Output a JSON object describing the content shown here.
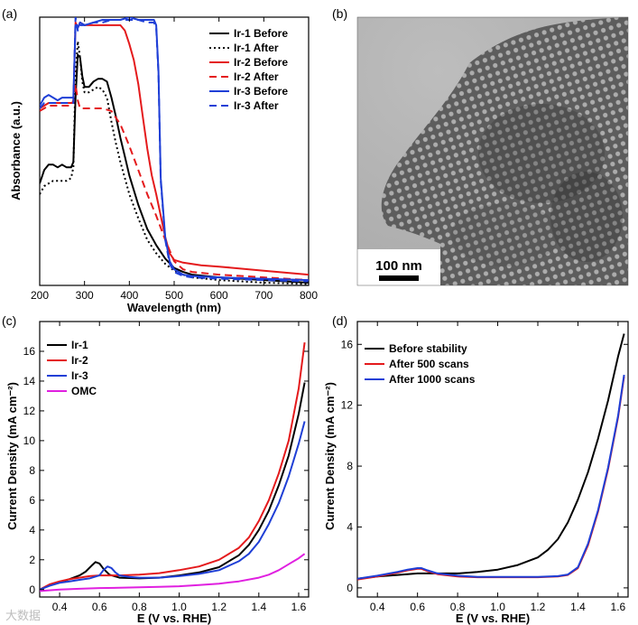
{
  "panel_labels": {
    "a": "(a)",
    "b": "(b)",
    "c": "(c)",
    "d": "(d)"
  },
  "watermark": "大数据",
  "chart_data": [
    {
      "id": "a",
      "type": "line",
      "title": "",
      "xlabel": "Wavelength (nm)",
      "ylabel": "Absorbance (a.u.)",
      "xlim": [
        200,
        800
      ],
      "ylim": [
        0,
        1
      ],
      "xticks": [
        200,
        300,
        400,
        500,
        600,
        700,
        800
      ],
      "xtick_labels": [
        "200",
        "300",
        "400",
        "500",
        "600",
        "700",
        "800"
      ],
      "yticks": [],
      "legend_position": "top-right",
      "series": [
        {
          "name": "Ir-1 Before",
          "color": "#000000",
          "dash": "solid",
          "x": [
            200,
            210,
            220,
            230,
            240,
            250,
            260,
            270,
            275,
            280,
            285,
            290,
            295,
            300,
            310,
            320,
            330,
            340,
            350,
            360,
            370,
            380,
            390,
            400,
            420,
            440,
            460,
            480,
            500,
            520,
            540,
            600,
            700,
            800
          ],
          "y": [
            0.38,
            0.43,
            0.45,
            0.45,
            0.44,
            0.45,
            0.44,
            0.44,
            0.46,
            0.7,
            0.86,
            0.85,
            0.78,
            0.74,
            0.74,
            0.76,
            0.77,
            0.77,
            0.76,
            0.7,
            0.63,
            0.55,
            0.48,
            0.41,
            0.3,
            0.21,
            0.15,
            0.1,
            0.065,
            0.05,
            0.04,
            0.03,
            0.02,
            0.01
          ]
        },
        {
          "name": "Ir-1 After",
          "color": "#000000",
          "dash": "dot",
          "x": [
            200,
            210,
            220,
            230,
            240,
            250,
            260,
            270,
            275,
            280,
            285,
            290,
            295,
            300,
            310,
            320,
            330,
            340,
            350,
            360,
            370,
            380,
            390,
            400,
            420,
            440,
            460,
            480,
            500,
            520,
            540,
            600,
            700,
            800
          ],
          "y": [
            0.34,
            0.37,
            0.38,
            0.39,
            0.39,
            0.39,
            0.39,
            0.4,
            0.44,
            0.78,
            0.91,
            0.85,
            0.76,
            0.72,
            0.72,
            0.73,
            0.74,
            0.73,
            0.7,
            0.61,
            0.53,
            0.46,
            0.4,
            0.34,
            0.25,
            0.17,
            0.12,
            0.08,
            0.055,
            0.04,
            0.03,
            0.02,
            0.01,
            0.005
          ]
        },
        {
          "name": "Ir-2 Before",
          "color": "#e41a1c",
          "dash": "solid",
          "x": [
            200,
            210,
            220,
            230,
            240,
            250,
            260,
            270,
            275,
            280,
            285,
            290,
            300,
            320,
            340,
            360,
            380,
            390,
            400,
            410,
            420,
            430,
            440,
            450,
            460,
            470,
            480,
            490,
            500,
            520,
            560,
            600,
            700,
            800
          ],
          "y": [
            0.66,
            0.67,
            0.68,
            0.68,
            0.68,
            0.68,
            0.68,
            0.68,
            0.68,
            0.98,
            0.96,
            0.98,
            0.97,
            0.97,
            0.97,
            0.97,
            0.97,
            0.95,
            0.9,
            0.84,
            0.75,
            0.63,
            0.51,
            0.41,
            0.34,
            0.26,
            0.18,
            0.12,
            0.095,
            0.085,
            0.075,
            0.07,
            0.055,
            0.04
          ]
        },
        {
          "name": "Ir-2 After",
          "color": "#e41a1c",
          "dash": "dash",
          "x": [
            200,
            210,
            220,
            230,
            240,
            250,
            260,
            270,
            275,
            280,
            285,
            290,
            300,
            320,
            340,
            360,
            380,
            390,
            400,
            420,
            440,
            460,
            480,
            500,
            520,
            540,
            600,
            700,
            800
          ],
          "y": [
            0.65,
            0.66,
            0.67,
            0.67,
            0.67,
            0.67,
            0.67,
            0.67,
            0.69,
            0.75,
            0.69,
            0.66,
            0.66,
            0.66,
            0.66,
            0.65,
            0.6,
            0.56,
            0.52,
            0.43,
            0.34,
            0.26,
            0.17,
            0.09,
            0.06,
            0.05,
            0.04,
            0.03,
            0.02
          ]
        },
        {
          "name": "Ir-3 Before",
          "color": "#1f3fd6",
          "dash": "solid",
          "x": [
            200,
            210,
            220,
            230,
            240,
            250,
            260,
            270,
            275,
            280,
            285,
            290,
            300,
            320,
            340,
            360,
            380,
            400,
            420,
            440,
            455,
            460,
            465,
            470,
            480,
            490,
            500,
            520,
            540,
            600,
            700,
            800
          ],
          "y": [
            0.67,
            0.7,
            0.71,
            0.7,
            0.69,
            0.7,
            0.7,
            0.7,
            0.7,
            0.97,
            0.96,
            0.98,
            0.97,
            0.98,
            0.99,
            0.99,
            0.99,
            1.0,
            0.99,
            0.99,
            0.99,
            0.97,
            0.8,
            0.4,
            0.18,
            0.09,
            0.06,
            0.04,
            0.035,
            0.03,
            0.025,
            0.02
          ]
        },
        {
          "name": "Ir-3 After",
          "color": "#1f3fd6",
          "dash": "dash",
          "x": [
            200,
            210,
            220,
            230,
            240,
            250,
            260,
            270,
            275,
            280,
            285,
            290,
            300,
            320,
            340,
            360,
            380,
            400,
            420,
            440,
            455,
            460,
            465,
            470,
            480,
            490,
            500,
            520,
            540,
            600,
            700,
            800
          ],
          "y": [
            0.66,
            0.68,
            0.68,
            0.68,
            0.68,
            0.68,
            0.68,
            0.68,
            0.68,
            1.0,
            0.95,
            0.97,
            0.97,
            0.98,
            0.98,
            0.99,
            0.99,
            0.99,
            0.99,
            0.98,
            0.98,
            0.96,
            0.79,
            0.39,
            0.17,
            0.08,
            0.05,
            0.035,
            0.03,
            0.025,
            0.02,
            0.015
          ]
        }
      ]
    },
    {
      "id": "c",
      "type": "line",
      "title": "",
      "xlabel": "E (V vs. RHE)",
      "ylabel": "Current Density (mA cm⁻²)",
      "xlim": [
        0.3,
        1.65
      ],
      "ylim": [
        -0.5,
        18
      ],
      "xticks": [
        0.4,
        0.6,
        0.8,
        1.0,
        1.2,
        1.4,
        1.6
      ],
      "xtick_labels": [
        "0.4",
        "0.6",
        "0.8",
        "1.0",
        "1.2",
        "1.4",
        "1.6"
      ],
      "yticks": [
        0,
        2,
        4,
        6,
        8,
        10,
        12,
        14,
        16
      ],
      "ytick_labels": [
        "0",
        "2",
        "4",
        "6",
        "8",
        "10",
        "12",
        "14",
        "16"
      ],
      "legend_position": "top-left",
      "series": [
        {
          "name": "Ir-1",
          "color": "#000000",
          "x": [
            0.3,
            0.35,
            0.4,
            0.45,
            0.5,
            0.53,
            0.56,
            0.58,
            0.6,
            0.62,
            0.65,
            0.7,
            0.8,
            0.9,
            1.0,
            1.1,
            1.2,
            1.3,
            1.35,
            1.4,
            1.45,
            1.5,
            1.55,
            1.6,
            1.63
          ],
          "y": [
            0.0,
            0.3,
            0.5,
            0.7,
            0.95,
            1.2,
            1.6,
            1.85,
            1.75,
            1.4,
            1.0,
            0.8,
            0.75,
            0.8,
            0.95,
            1.15,
            1.5,
            2.3,
            3.0,
            4.0,
            5.3,
            7.0,
            9.0,
            11.8,
            13.9
          ]
        },
        {
          "name": "Ir-2",
          "color": "#e41a1c",
          "x": [
            0.3,
            0.35,
            0.4,
            0.45,
            0.5,
            0.55,
            0.6,
            0.65,
            0.7,
            0.8,
            0.9,
            1.0,
            1.1,
            1.2,
            1.3,
            1.35,
            1.4,
            1.45,
            1.5,
            1.55,
            1.6,
            1.63
          ],
          "y": [
            0.0,
            0.35,
            0.55,
            0.7,
            0.8,
            0.9,
            0.95,
            0.95,
            0.95,
            1.0,
            1.1,
            1.3,
            1.55,
            2.0,
            2.8,
            3.5,
            4.6,
            6.0,
            7.8,
            10.0,
            13.5,
            16.6
          ]
        },
        {
          "name": "Ir-3",
          "color": "#1f3fd6",
          "x": [
            0.3,
            0.35,
            0.4,
            0.45,
            0.5,
            0.55,
            0.6,
            0.62,
            0.64,
            0.66,
            0.68,
            0.7,
            0.75,
            0.8,
            0.9,
            1.0,
            1.1,
            1.2,
            1.3,
            1.35,
            1.4,
            1.45,
            1.5,
            1.55,
            1.6,
            1.63
          ],
          "y": [
            0.0,
            0.25,
            0.45,
            0.55,
            0.65,
            0.75,
            0.95,
            1.3,
            1.55,
            1.45,
            1.15,
            0.95,
            0.85,
            0.8,
            0.8,
            0.9,
            1.05,
            1.3,
            1.9,
            2.4,
            3.2,
            4.4,
            5.8,
            7.6,
            9.8,
            11.3
          ]
        },
        {
          "name": "OMC",
          "color": "#e020e0",
          "x": [
            0.3,
            0.4,
            0.5,
            0.6,
            0.7,
            0.8,
            0.9,
            1.0,
            1.1,
            1.2,
            1.3,
            1.4,
            1.45,
            1.5,
            1.55,
            1.6,
            1.63
          ],
          "y": [
            -0.1,
            0.0,
            0.05,
            0.1,
            0.12,
            0.15,
            0.18,
            0.22,
            0.3,
            0.4,
            0.55,
            0.8,
            1.0,
            1.3,
            1.7,
            2.1,
            2.4
          ]
        }
      ]
    },
    {
      "id": "d",
      "type": "line",
      "title": "",
      "xlabel": "E (V vs. RHE)",
      "ylabel": "Current Density (mA cm⁻²)",
      "xlim": [
        0.3,
        1.65
      ],
      "ylim": [
        -0.6,
        17.5
      ],
      "xticks": [
        0.4,
        0.6,
        0.8,
        1.0,
        1.2,
        1.4,
        1.6
      ],
      "xtick_labels": [
        "0.4",
        "0.6",
        "0.8",
        "1.0",
        "1.2",
        "1.4",
        "1.6"
      ],
      "yticks": [
        0,
        4,
        8,
        12,
        16
      ],
      "ytick_labels": [
        "0",
        "4",
        "8",
        "12",
        "16"
      ],
      "legend_position": "top-left",
      "series": [
        {
          "name": "Before stability",
          "color": "#000000",
          "x": [
            0.3,
            0.4,
            0.5,
            0.6,
            0.7,
            0.8,
            0.9,
            1.0,
            1.1,
            1.2,
            1.25,
            1.3,
            1.35,
            1.4,
            1.45,
            1.5,
            1.55,
            1.6,
            1.63
          ],
          "y": [
            0.6,
            0.75,
            0.85,
            0.95,
            0.95,
            0.95,
            1.05,
            1.2,
            1.5,
            2.0,
            2.5,
            3.2,
            4.3,
            5.8,
            7.6,
            9.8,
            12.3,
            15.2,
            16.7
          ]
        },
        {
          "name": "After 500 scans",
          "color": "#e41a1c",
          "x": [
            0.3,
            0.4,
            0.5,
            0.55,
            0.6,
            0.62,
            0.65,
            0.7,
            0.8,
            0.9,
            1.0,
            1.1,
            1.2,
            1.3,
            1.35,
            1.4,
            1.45,
            1.5,
            1.55,
            1.6,
            1.63
          ],
          "y": [
            0.55,
            0.75,
            1.0,
            1.15,
            1.25,
            1.25,
            1.1,
            0.9,
            0.75,
            0.7,
            0.7,
            0.7,
            0.7,
            0.75,
            0.85,
            1.3,
            2.8,
            5.0,
            7.8,
            11.2,
            13.9
          ]
        },
        {
          "name": "After 1000 scans",
          "color": "#1f3fd6",
          "x": [
            0.3,
            0.4,
            0.5,
            0.55,
            0.6,
            0.62,
            0.65,
            0.7,
            0.8,
            0.9,
            1.0,
            1.1,
            1.2,
            1.3,
            1.35,
            1.4,
            1.45,
            1.5,
            1.55,
            1.6,
            1.63
          ],
          "y": [
            0.6,
            0.8,
            1.05,
            1.2,
            1.3,
            1.3,
            1.15,
            0.95,
            0.8,
            0.72,
            0.72,
            0.72,
            0.72,
            0.77,
            0.88,
            1.35,
            2.9,
            5.1,
            7.9,
            11.3,
            14.0
          ]
        }
      ]
    },
    {
      "id": "b",
      "type": "image",
      "title": "",
      "scale_bar_label": "100 nm"
    }
  ]
}
